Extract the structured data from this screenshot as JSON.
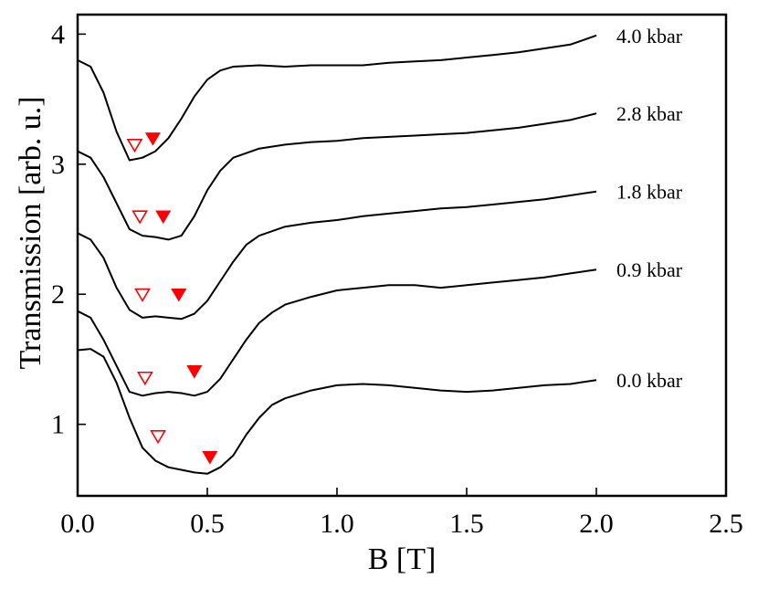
{
  "chart_data": {
    "type": "line",
    "title": "",
    "xlabel": "B [T]",
    "ylabel": "Transmission [arb. u.]",
    "xlim": [
      0.0,
      2.5
    ],
    "ylim": [
      0.45,
      4.15
    ],
    "xticks": [
      0.0,
      0.5,
      1.0,
      1.5,
      2.0,
      2.5
    ],
    "xtick_labels": [
      "0.0",
      "0.5",
      "1.0",
      "1.5",
      "2.0",
      "2.5"
    ],
    "yticks": [
      1,
      2,
      3,
      4
    ],
    "ytick_labels": [
      "1",
      "2",
      "3",
      "4"
    ],
    "grid": false,
    "legend": "none",
    "line_color": "#000000",
    "marker_color": "#ff0000",
    "series": [
      {
        "label": "0.0 kbar",
        "points": [
          [
            0.0,
            1.57
          ],
          [
            0.05,
            1.58
          ],
          [
            0.1,
            1.52
          ],
          [
            0.15,
            1.32
          ],
          [
            0.2,
            1.05
          ],
          [
            0.25,
            0.82
          ],
          [
            0.3,
            0.72
          ],
          [
            0.35,
            0.67
          ],
          [
            0.4,
            0.65
          ],
          [
            0.45,
            0.63
          ],
          [
            0.5,
            0.62
          ],
          [
            0.55,
            0.67
          ],
          [
            0.6,
            0.76
          ],
          [
            0.65,
            0.92
          ],
          [
            0.7,
            1.05
          ],
          [
            0.75,
            1.15
          ],
          [
            0.8,
            1.2
          ],
          [
            0.9,
            1.26
          ],
          [
            1.0,
            1.3
          ],
          [
            1.1,
            1.31
          ],
          [
            1.2,
            1.3
          ],
          [
            1.3,
            1.28
          ],
          [
            1.4,
            1.26
          ],
          [
            1.5,
            1.25
          ],
          [
            1.6,
            1.26
          ],
          [
            1.7,
            1.28
          ],
          [
            1.8,
            1.3
          ],
          [
            1.9,
            1.31
          ],
          [
            2.0,
            1.34
          ]
        ],
        "markers": {
          "open": [
            0.31,
            0.91
          ],
          "filled": [
            0.51,
            0.75
          ]
        }
      },
      {
        "label": "0.9 kbar",
        "points": [
          [
            0.0,
            1.87
          ],
          [
            0.05,
            1.82
          ],
          [
            0.1,
            1.65
          ],
          [
            0.15,
            1.45
          ],
          [
            0.2,
            1.25
          ],
          [
            0.25,
            1.22
          ],
          [
            0.3,
            1.24
          ],
          [
            0.35,
            1.25
          ],
          [
            0.4,
            1.24
          ],
          [
            0.45,
            1.22
          ],
          [
            0.5,
            1.25
          ],
          [
            0.55,
            1.35
          ],
          [
            0.6,
            1.5
          ],
          [
            0.65,
            1.65
          ],
          [
            0.7,
            1.78
          ],
          [
            0.75,
            1.86
          ],
          [
            0.8,
            1.92
          ],
          [
            0.9,
            1.98
          ],
          [
            1.0,
            2.03
          ],
          [
            1.1,
            2.05
          ],
          [
            1.2,
            2.07
          ],
          [
            1.3,
            2.07
          ],
          [
            1.4,
            2.05
          ],
          [
            1.5,
            2.07
          ],
          [
            1.6,
            2.09
          ],
          [
            1.7,
            2.11
          ],
          [
            1.8,
            2.13
          ],
          [
            1.9,
            2.16
          ],
          [
            2.0,
            2.19
          ]
        ],
        "markers": {
          "open": [
            0.26,
            1.36
          ],
          "filled": [
            0.45,
            1.41
          ]
        }
      },
      {
        "label": "1.8 kbar",
        "points": [
          [
            0.0,
            2.47
          ],
          [
            0.05,
            2.42
          ],
          [
            0.1,
            2.28
          ],
          [
            0.15,
            2.05
          ],
          [
            0.2,
            1.88
          ],
          [
            0.25,
            1.82
          ],
          [
            0.3,
            1.83
          ],
          [
            0.35,
            1.82
          ],
          [
            0.4,
            1.81
          ],
          [
            0.45,
            1.85
          ],
          [
            0.5,
            1.95
          ],
          [
            0.55,
            2.1
          ],
          [
            0.6,
            2.25
          ],
          [
            0.65,
            2.38
          ],
          [
            0.7,
            2.45
          ],
          [
            0.8,
            2.52
          ],
          [
            0.9,
            2.55
          ],
          [
            1.0,
            2.57
          ],
          [
            1.1,
            2.6
          ],
          [
            1.2,
            2.62
          ],
          [
            1.3,
            2.64
          ],
          [
            1.4,
            2.66
          ],
          [
            1.5,
            2.67
          ],
          [
            1.6,
            2.69
          ],
          [
            1.7,
            2.71
          ],
          [
            1.8,
            2.73
          ],
          [
            1.9,
            2.76
          ],
          [
            2.0,
            2.79
          ]
        ],
        "markers": {
          "open": [
            0.25,
            2.0
          ],
          "filled": [
            0.39,
            2.0
          ]
        }
      },
      {
        "label": "2.8 kbar",
        "points": [
          [
            0.0,
            3.1
          ],
          [
            0.05,
            3.05
          ],
          [
            0.1,
            2.9
          ],
          [
            0.15,
            2.7
          ],
          [
            0.2,
            2.5
          ],
          [
            0.25,
            2.45
          ],
          [
            0.3,
            2.44
          ],
          [
            0.35,
            2.42
          ],
          [
            0.4,
            2.45
          ],
          [
            0.45,
            2.6
          ],
          [
            0.5,
            2.8
          ],
          [
            0.55,
            2.95
          ],
          [
            0.6,
            3.05
          ],
          [
            0.7,
            3.12
          ],
          [
            0.8,
            3.15
          ],
          [
            0.9,
            3.17
          ],
          [
            1.0,
            3.18
          ],
          [
            1.1,
            3.2
          ],
          [
            1.2,
            3.21
          ],
          [
            1.3,
            3.22
          ],
          [
            1.4,
            3.23
          ],
          [
            1.5,
            3.24
          ],
          [
            1.6,
            3.26
          ],
          [
            1.7,
            3.28
          ],
          [
            1.8,
            3.31
          ],
          [
            1.9,
            3.34
          ],
          [
            2.0,
            3.39
          ]
        ],
        "markers": {
          "open": [
            0.24,
            2.6
          ],
          "filled": [
            0.33,
            2.6
          ]
        }
      },
      {
        "label": "4.0 kbar",
        "points": [
          [
            0.0,
            3.8
          ],
          [
            0.05,
            3.75
          ],
          [
            0.1,
            3.55
          ],
          [
            0.15,
            3.25
          ],
          [
            0.2,
            3.03
          ],
          [
            0.25,
            3.05
          ],
          [
            0.3,
            3.1
          ],
          [
            0.35,
            3.2
          ],
          [
            0.4,
            3.35
          ],
          [
            0.45,
            3.52
          ],
          [
            0.5,
            3.65
          ],
          [
            0.55,
            3.72
          ],
          [
            0.6,
            3.75
          ],
          [
            0.7,
            3.76
          ],
          [
            0.8,
            3.75
          ],
          [
            0.9,
            3.76
          ],
          [
            1.0,
            3.76
          ],
          [
            1.1,
            3.76
          ],
          [
            1.2,
            3.78
          ],
          [
            1.3,
            3.79
          ],
          [
            1.4,
            3.8
          ],
          [
            1.5,
            3.82
          ],
          [
            1.6,
            3.84
          ],
          [
            1.7,
            3.86
          ],
          [
            1.8,
            3.89
          ],
          [
            1.9,
            3.92
          ],
          [
            2.0,
            3.99
          ]
        ],
        "markers": {
          "open": [
            0.22,
            3.15
          ],
          "filled": [
            0.29,
            3.2
          ]
        }
      }
    ]
  }
}
